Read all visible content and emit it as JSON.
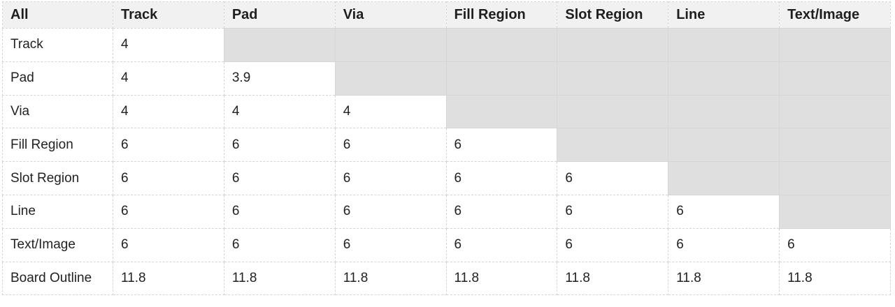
{
  "corner_label": "All",
  "columns": [
    "Track",
    "Pad",
    "Via",
    "Fill Region",
    "Slot Region",
    "Line",
    "Text/Image"
  ],
  "rows": [
    {
      "label": "Track",
      "values": [
        "4",
        "",
        "",
        "",
        "",
        "",
        ""
      ]
    },
    {
      "label": "Pad",
      "values": [
        "4",
        "3.9",
        "",
        "",
        "",
        "",
        ""
      ]
    },
    {
      "label": "Via",
      "values": [
        "4",
        "4",
        "4",
        "",
        "",
        "",
        ""
      ]
    },
    {
      "label": "Fill Region",
      "values": [
        "6",
        "6",
        "6",
        "6",
        "",
        "",
        ""
      ]
    },
    {
      "label": "Slot Region",
      "values": [
        "6",
        "6",
        "6",
        "6",
        "6",
        "",
        ""
      ]
    },
    {
      "label": "Line",
      "values": [
        "6",
        "6",
        "6",
        "6",
        "6",
        "6",
        ""
      ]
    },
    {
      "label": "Text/Image",
      "values": [
        "6",
        "6",
        "6",
        "6",
        "6",
        "6",
        "6"
      ]
    },
    {
      "label": "Board Outline",
      "values": [
        "11.8",
        "11.8",
        "11.8",
        "11.8",
        "11.8",
        "11.8",
        "11.8"
      ]
    }
  ],
  "editable_cells_per_row": [
    1,
    2,
    3,
    4,
    5,
    6,
    7,
    7
  ],
  "colors": {
    "header_bg": "#f1f1f1",
    "disabled_cell_bg": "#dfdfdf",
    "grid_line": "#d6d6d6"
  }
}
